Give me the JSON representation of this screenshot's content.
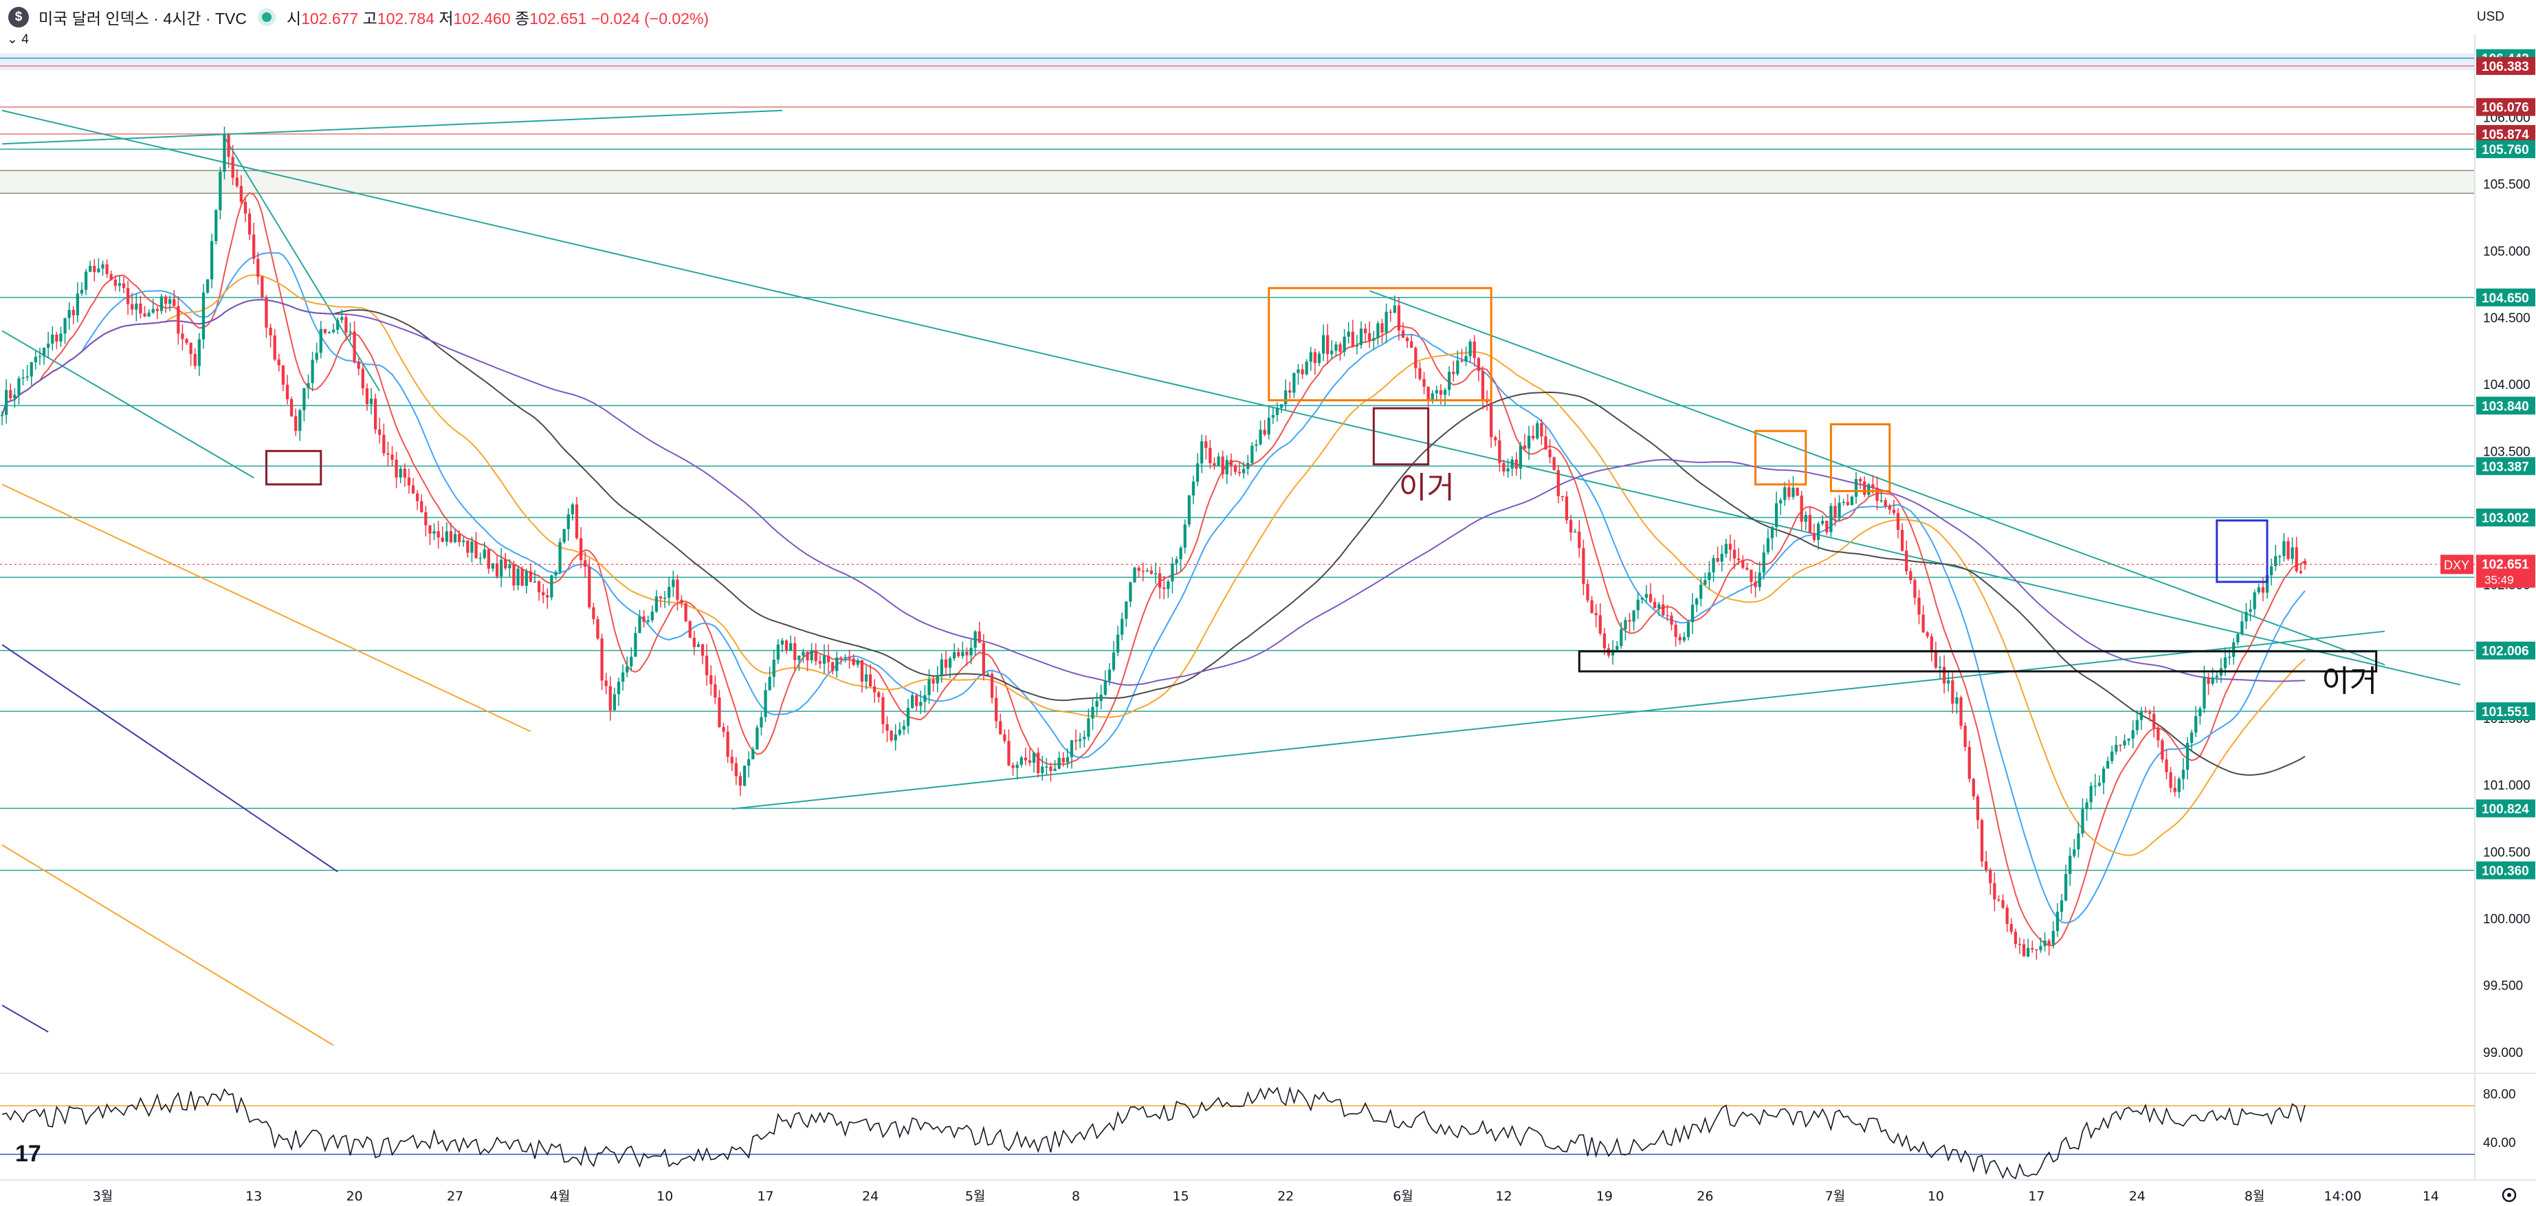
{
  "header": {
    "symbol_title": "미국 달러 인덱스 · 4시간 · TVC",
    "logo_glyph": "$",
    "open_label": "시",
    "open": "102.677",
    "high_label": "고",
    "high": "102.784",
    "low_label": "저",
    "low": "102.460",
    "close_label": "종",
    "close": "102.651",
    "change": "−0.024 (−0.02%)",
    "interval_badge": "4",
    "currency": "USD"
  },
  "price_tag": {
    "ticker": "DXY",
    "price": "102.651",
    "countdown": "35:49",
    "color": "#f23645"
  },
  "chart_data": [
    {
      "type": "candlestick",
      "title": "미국 달러 인덱스 · 4시간 · TVC",
      "ylim": [
        98.85,
        106.62
      ],
      "y_ticks": [
        "106.000",
        "105.500",
        "105.000",
        "104.500",
        "104.000",
        "103.500",
        "103.000",
        "102.500",
        "102.000",
        "101.500",
        "101.000",
        "100.500",
        "100.000",
        "99.500",
        "99.000"
      ],
      "x_ticks": [
        "3월",
        "13",
        "20",
        "27",
        "4월",
        "10",
        "17",
        "24",
        "5월",
        "8",
        "15",
        "22",
        "6월",
        "12",
        "19",
        "26",
        "7월",
        "10",
        "17",
        "24",
        "8월",
        "14:00",
        "14"
      ],
      "x_tick_index": [
        24,
        60,
        84,
        108,
        133,
        158,
        182,
        207,
        232,
        256,
        281,
        306,
        334,
        358,
        382,
        406,
        437,
        461,
        485,
        509,
        537,
        558,
        579
      ],
      "n_bars": 590,
      "close_anchors": [
        [
          0,
          103.85
        ],
        [
          14,
          104.4
        ],
        [
          22,
          104.9
        ],
        [
          32,
          104.55
        ],
        [
          40,
          104.6
        ],
        [
          46,
          104.15
        ],
        [
          53,
          105.8
        ],
        [
          58,
          105.3
        ],
        [
          64,
          104.3
        ],
        [
          70,
          103.65
        ],
        [
          76,
          104.4
        ],
        [
          82,
          104.45
        ],
        [
          90,
          103.6
        ],
        [
          100,
          103.0
        ],
        [
          110,
          102.8
        ],
        [
          120,
          102.6
        ],
        [
          130,
          102.45
        ],
        [
          136,
          103.1
        ],
        [
          145,
          101.5
        ],
        [
          152,
          102.2
        ],
        [
          160,
          102.5
        ],
        [
          168,
          101.8
        ],
        [
          176,
          100.95
        ],
        [
          185,
          102.05
        ],
        [
          195,
          101.95
        ],
        [
          205,
          101.85
        ],
        [
          212,
          101.4
        ],
        [
          222,
          101.8
        ],
        [
          232,
          102.1
        ],
        [
          240,
          101.2
        ],
        [
          248,
          101.15
        ],
        [
          257,
          101.3
        ],
        [
          262,
          101.65
        ],
        [
          270,
          102.6
        ],
        [
          278,
          102.45
        ],
        [
          286,
          103.5
        ],
        [
          295,
          103.3
        ],
        [
          305,
          103.9
        ],
        [
          315,
          104.3
        ],
        [
          325,
          104.35
        ],
        [
          332,
          104.55
        ],
        [
          340,
          103.85
        ],
        [
          350,
          104.3
        ],
        [
          358,
          103.3
        ],
        [
          366,
          103.65
        ],
        [
          374,
          102.95
        ],
        [
          382,
          101.95
        ],
        [
          392,
          102.5
        ],
        [
          400,
          102.05
        ],
        [
          410,
          102.8
        ],
        [
          418,
          102.55
        ],
        [
          425,
          103.3
        ],
        [
          432,
          102.85
        ],
        [
          442,
          103.25
        ],
        [
          450,
          103.1
        ],
        [
          458,
          102.1
        ],
        [
          466,
          101.6
        ],
        [
          472,
          100.5
        ],
        [
          480,
          99.75
        ],
        [
          488,
          99.8
        ],
        [
          496,
          100.8
        ],
        [
          505,
          101.35
        ],
        [
          512,
          101.55
        ],
        [
          518,
          100.95
        ],
        [
          525,
          101.75
        ],
        [
          532,
          102.05
        ],
        [
          538,
          102.45
        ],
        [
          544,
          102.75
        ],
        [
          548,
          102.65
        ],
        [
          549,
          102.651
        ]
      ],
      "horizontal_levels": [
        {
          "price": 106.442,
          "label": "106.442",
          "tag_color": "#089981"
        },
        {
          "price": 106.383,
          "label": "106.383",
          "tag_color": "#b22833"
        },
        {
          "price": 106.076,
          "label": "106.076",
          "tag_color": "#b22833"
        },
        {
          "price": 105.874,
          "label": "105.874",
          "tag_color": "#b22833"
        },
        {
          "price": 105.76,
          "label": "105.760",
          "tag_color": "#089981"
        },
        {
          "price": 104.65,
          "label": "104.650",
          "tag_color": "#089981"
        },
        {
          "price": 103.84,
          "label": "103.840",
          "tag_color": "#089981"
        },
        {
          "price": 103.387,
          "label": "103.387",
          "tag_color": "#089981"
        },
        {
          "price": 103.002,
          "label": "103.002",
          "tag_color": "#089981"
        },
        {
          "price": 102.554,
          "label": "102.554",
          "tag_color": "#089981"
        },
        {
          "price": 102.006,
          "label": "102.006",
          "tag_color": "#089981"
        },
        {
          "price": 101.551,
          "label": "101.551",
          "tag_color": "#089981"
        },
        {
          "price": 100.824,
          "label": "100.824",
          "tag_color": "#089981"
        },
        {
          "price": 100.36,
          "label": "100.360",
          "tag_color": "#089981"
        }
      ],
      "extra_levels": [
        105.6,
        105.43
      ],
      "zone_fills": [
        {
          "from": 106.35,
          "to": 106.48,
          "color": "rgba(41,98,255,0.10)"
        },
        {
          "from": 105.43,
          "to": 105.6,
          "color": "rgba(160,170,130,0.12)"
        }
      ],
      "moving_averages": [
        {
          "period": 10,
          "color": "#ef5350"
        },
        {
          "period": 20,
          "color": "#42a5f5"
        },
        {
          "period": 40,
          "color": "#f7a531"
        },
        {
          "period": 80,
          "color": "#4a4a4a"
        },
        {
          "period": 130,
          "color": "#7e57c2"
        }
      ],
      "trendlines": [
        {
          "from": [
            0,
            106.05
          ],
          "to": [
            586,
            101.75
          ],
          "color": "#26a69a"
        },
        {
          "from": [
            0,
            105.8
          ],
          "to": [
            186,
            106.05
          ],
          "color": "#26a69a"
        },
        {
          "from": [
            53,
            105.85
          ],
          "to": [
            90,
            103.95
          ],
          "color": "#26a69a"
        },
        {
          "from": [
            0,
            104.4
          ],
          "to": [
            60,
            103.3
          ],
          "color": "#26a69a"
        },
        {
          "from": [
            174,
            100.82
          ],
          "to": [
            568,
            102.15
          ],
          "color": "#26a69a"
        },
        {
          "from": [
            326,
            104.7
          ],
          "to": [
            568,
            101.9
          ],
          "color": "#26a69a"
        },
        {
          "from": [
            0,
            103.25
          ],
          "to": [
            126,
            101.4
          ],
          "color": "#f7a531"
        },
        {
          "from": [
            0,
            100.55
          ],
          "to": [
            79,
            99.05
          ],
          "color": "#f7a531"
        },
        {
          "from": [
            0,
            102.05
          ],
          "to": [
            80,
            100.35
          ],
          "color": "#3f3ba8"
        },
        {
          "from": [
            0,
            99.35
          ],
          "to": [
            11,
            99.15
          ],
          "color": "#3f3ba8"
        }
      ],
      "boxes": [
        {
          "x1": 302,
          "x2": 355,
          "y1": 104.72,
          "y2": 103.88,
          "color": "#f57c00"
        },
        {
          "x1": 418,
          "x2": 430,
          "y1": 103.65,
          "y2": 103.25,
          "color": "#f57c00"
        },
        {
          "x1": 436,
          "x2": 450,
          "y1": 103.7,
          "y2": 103.2,
          "color": "#f57c00"
        },
        {
          "x1": 63,
          "x2": 76,
          "y1": 103.5,
          "y2": 103.25,
          "color": "#8b1a2b"
        },
        {
          "x1": 327,
          "x2": 340,
          "y1": 103.82,
          "y2": 103.4,
          "color": "#8b1a2b"
        },
        {
          "x1": 528,
          "x2": 540,
          "y1": 102.98,
          "y2": 102.52,
          "color": "#2a35d9"
        },
        {
          "x1": 376,
          "x2": 566,
          "y1": 102.0,
          "y2": 101.85,
          "color": "#111111"
        }
      ],
      "annotations": [
        {
          "text": "이거",
          "at": [
            333,
            103.15
          ],
          "color": "#8b1a2b"
        },
        {
          "text": "이거",
          "at": [
            553,
            101.7
          ],
          "color": "#111111"
        }
      ]
    },
    {
      "type": "line",
      "title": "",
      "ylabel": "",
      "ylim": [
        10,
        95
      ],
      "y_ticks": [
        "80.00",
        "40.00"
      ],
      "guide_lines": [
        {
          "value": 70,
          "color": "#f7a531"
        },
        {
          "value": 30,
          "color": "#3f51b5"
        }
      ],
      "x_range": [
        0,
        549
      ],
      "oscillator_anchors": [
        [
          0,
          58
        ],
        [
          22,
          62
        ],
        [
          53,
          80
        ],
        [
          64,
          45
        ],
        [
          90,
          35
        ],
        [
          100,
          42
        ],
        [
          145,
          28
        ],
        [
          176,
          30
        ],
        [
          186,
          58
        ],
        [
          222,
          50
        ],
        [
          248,
          38
        ],
        [
          270,
          62
        ],
        [
          306,
          78
        ],
        [
          340,
          56
        ],
        [
          382,
          35
        ],
        [
          400,
          45
        ],
        [
          410,
          62
        ],
        [
          442,
          58
        ],
        [
          466,
          25
        ],
        [
          482,
          15
        ],
        [
          496,
          45
        ],
        [
          505,
          65
        ],
        [
          532,
          60
        ],
        [
          546,
          66
        ],
        [
          549,
          62
        ]
      ]
    }
  ]
}
